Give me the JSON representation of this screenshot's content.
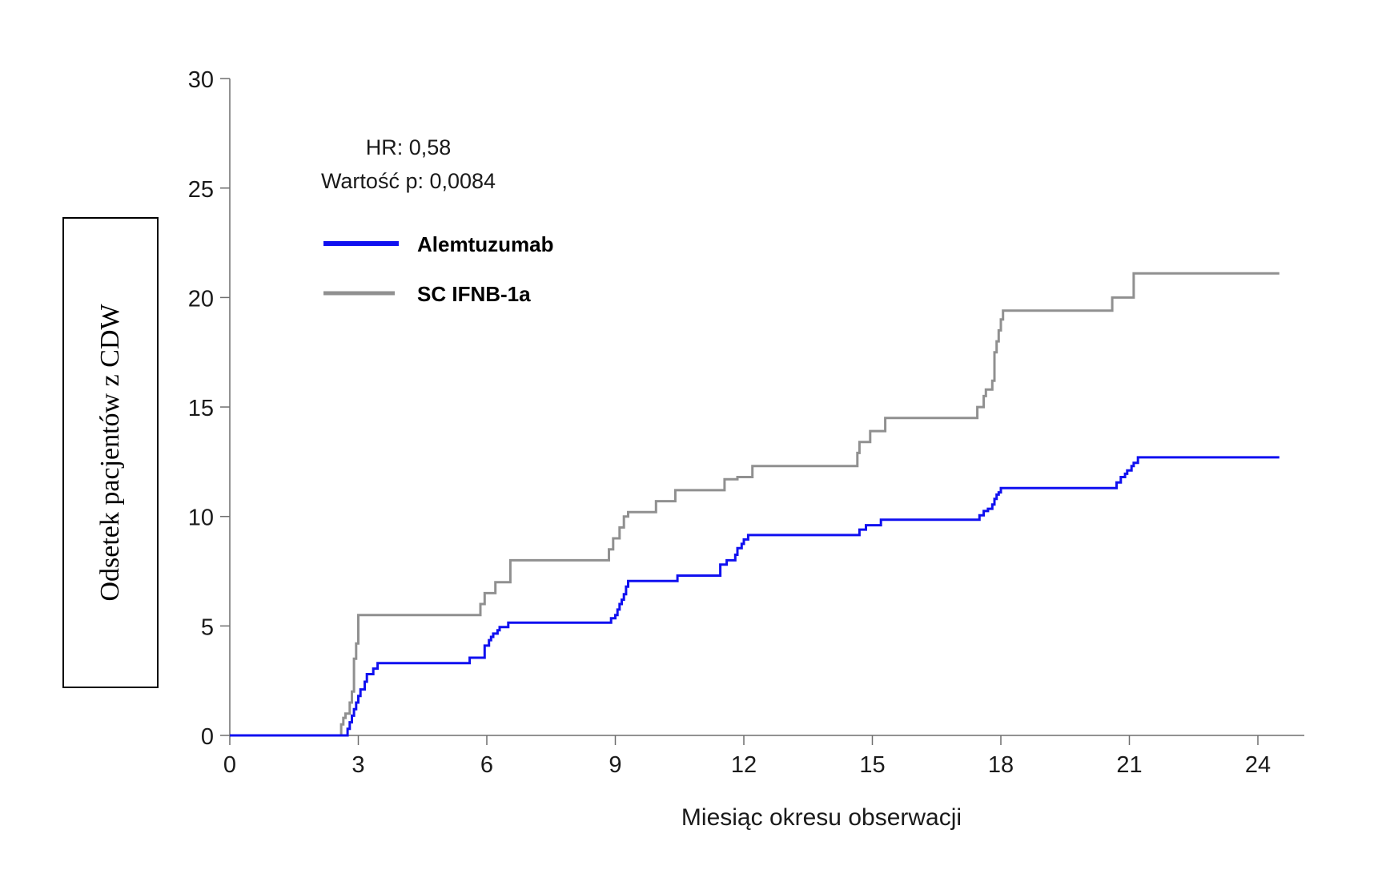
{
  "chart_data": {
    "type": "line",
    "step": true,
    "xlabel": "Miesiąc okresu obserwacji",
    "ylabel": "Odsetek pacjentów z CDW",
    "xlim": [
      0,
      24.5
    ],
    "ylim": [
      0,
      30
    ],
    "xticks": [
      "0",
      "3",
      "6",
      "9",
      "12",
      "15",
      "18",
      "21",
      "24"
    ],
    "yticks": [
      "0",
      "5",
      "10",
      "15",
      "20",
      "25",
      "30"
    ],
    "grid": false,
    "legend_position": "top-left",
    "annotations": [
      "HR: 0,58",
      "Wartość p: 0,0084"
    ],
    "series": [
      {
        "name": "Alemtuzumab",
        "color": "#1010f0",
        "x": [
          0,
          2.7,
          2.75,
          2.8,
          2.85,
          2.9,
          2.95,
          3.0,
          3.05,
          3.1,
          3.15,
          3.2,
          3.3,
          3.35,
          3.45,
          3.5,
          5.6,
          5.95,
          6.05,
          6.1,
          6.15,
          6.25,
          6.3,
          6.35,
          6.5,
          6.6,
          8.9,
          9.0,
          9.05,
          9.1,
          9.15,
          9.2,
          9.25,
          9.3,
          9.35,
          10.45,
          11.1,
          11.45,
          11.6,
          11.65,
          11.8,
          11.85,
          11.95,
          12.0,
          12.1,
          14.7,
          14.85,
          14.9,
          15.2,
          15.25,
          17.5,
          17.6,
          17.7,
          17.8,
          17.85,
          17.9,
          17.95,
          18.0,
          20.7,
          20.8,
          20.9,
          20.95,
          21.05,
          21.1,
          21.2,
          24.5
        ],
        "y": [
          0,
          0,
          0.3,
          0.6,
          0.9,
          1.2,
          1.5,
          1.8,
          2.1,
          2.1,
          2.45,
          2.8,
          2.8,
          3.05,
          3.3,
          3.3,
          3.55,
          4.1,
          4.35,
          4.5,
          4.65,
          4.8,
          4.95,
          4.95,
          5.15,
          5.15,
          5.35,
          5.5,
          5.75,
          6.0,
          6.2,
          6.45,
          6.8,
          7.05,
          7.05,
          7.3,
          7.3,
          7.8,
          8.0,
          8.0,
          8.25,
          8.55,
          8.75,
          8.95,
          9.15,
          9.4,
          9.6,
          9.6,
          9.85,
          9.85,
          10.05,
          10.25,
          10.35,
          10.55,
          10.8,
          11.0,
          11.1,
          11.3,
          11.55,
          11.8,
          11.95,
          12.1,
          12.3,
          12.45,
          12.7,
          12.7
        ]
      },
      {
        "name": "SC IFNB-1a",
        "color": "#909090",
        "x": [
          0,
          2.6,
          2.65,
          2.7,
          2.8,
          2.85,
          2.9,
          2.95,
          3.0,
          5.55,
          5.85,
          5.95,
          6.05,
          6.2,
          6.4,
          6.55,
          8.85,
          8.95,
          9.1,
          9.2,
          9.3,
          9.35,
          9.95,
          10.4,
          11.55,
          11.85,
          12.2,
          14.65,
          14.7,
          14.75,
          14.95,
          15.3,
          17.45,
          17.6,
          17.65,
          17.8,
          17.85,
          17.9,
          17.95,
          18.0,
          18.05,
          20.6,
          21.1,
          24.5
        ],
        "y": [
          0,
          0.5,
          0.8,
          1.0,
          1.5,
          2.0,
          3.5,
          4.2,
          5.5,
          5.5,
          6.0,
          6.5,
          6.5,
          7.0,
          7.0,
          8.0,
          8.5,
          9.0,
          9.5,
          10.0,
          10.2,
          10.2,
          10.7,
          11.2,
          11.7,
          11.8,
          12.3,
          12.9,
          13.4,
          13.4,
          13.9,
          14.5,
          15.0,
          15.5,
          15.8,
          16.2,
          17.5,
          18.0,
          18.5,
          19.0,
          19.4,
          20.0,
          21.1,
          21.1
        ]
      }
    ]
  }
}
